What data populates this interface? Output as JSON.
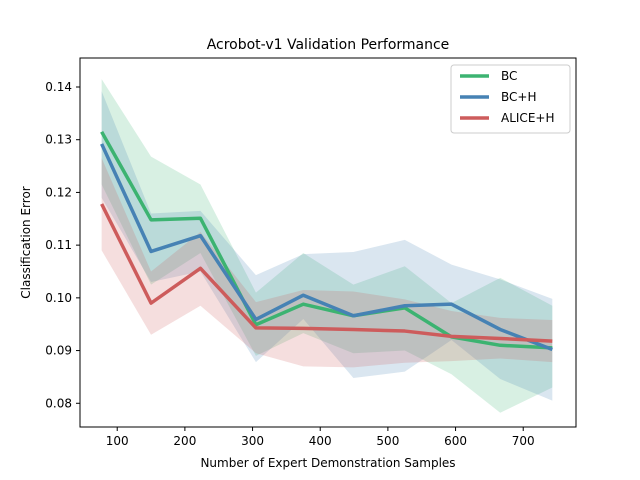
{
  "chart_data": {
    "type": "line",
    "title": "Acrobot-v1 Validation Performance",
    "xlabel": "Number of Expert Demonstration Samples",
    "ylabel": "Classification Error",
    "xlim": [
      45,
      778
    ],
    "ylim": [
      0.0755,
      0.1455
    ],
    "xticks": [
      100,
      200,
      300,
      400,
      500,
      600,
      700
    ],
    "yticks": [
      0.08,
      0.09,
      0.1,
      0.11,
      0.12,
      0.13,
      0.14
    ],
    "grid": false,
    "legend_position": "top-right",
    "x": [
      77,
      150,
      223,
      305,
      375,
      449,
      525,
      594,
      666,
      743
    ],
    "series": [
      {
        "name": "BC",
        "color": "#3cb371",
        "values": [
          0.1315,
          0.1148,
          0.1151,
          0.0949,
          0.0988,
          0.0966,
          0.0981,
          0.0926,
          0.091,
          0.0905
        ],
        "lower": [
          0.1215,
          0.1025,
          0.1085,
          0.089,
          0.0933,
          0.0895,
          0.09,
          0.0855,
          0.0782,
          0.083
        ],
        "upper": [
          0.1415,
          0.1268,
          0.1215,
          0.101,
          0.1085,
          0.1025,
          0.106,
          0.099,
          0.1038,
          0.0985
        ]
      },
      {
        "name": "BC+H",
        "color": "#4682b4",
        "values": [
          0.1292,
          0.1088,
          0.1118,
          0.0959,
          0.1005,
          0.0966,
          0.0985,
          0.0988,
          0.094,
          0.0902
        ],
        "lower": [
          0.119,
          0.103,
          0.105,
          0.0878,
          0.096,
          0.0848,
          0.086,
          0.092,
          0.0846,
          0.0805
        ],
        "upper": [
          0.1392,
          0.116,
          0.1165,
          0.1043,
          0.1083,
          0.1087,
          0.111,
          0.1063,
          0.1035,
          0.0998
        ]
      },
      {
        "name": "ALICE+H",
        "color": "#cd5c5c",
        "values": [
          0.1178,
          0.099,
          0.1056,
          0.0943,
          0.0942,
          0.094,
          0.0937,
          0.0927,
          0.0923,
          0.0918
        ],
        "lower": [
          0.109,
          0.093,
          0.0985,
          0.0895,
          0.087,
          0.0868,
          0.0877,
          0.088,
          0.0885,
          0.0878
        ],
        "upper": [
          0.1265,
          0.105,
          0.1125,
          0.0992,
          0.1015,
          0.1012,
          0.0997,
          0.0975,
          0.0962,
          0.0958
        ]
      }
    ]
  }
}
